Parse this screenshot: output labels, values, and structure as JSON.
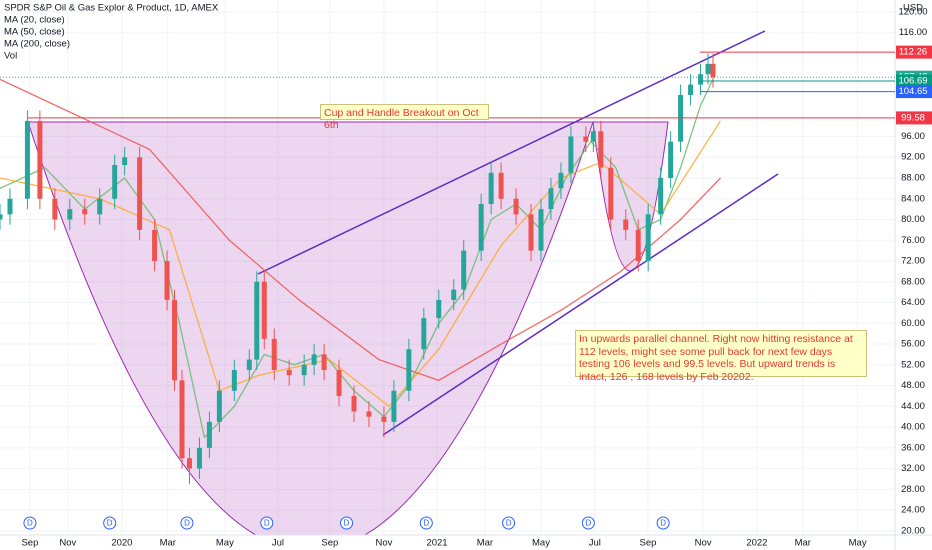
{
  "chart_data": {
    "type": "candlestick",
    "title": "SPDR S&P Oil & Gas Explor & Product, 1D, AMEX",
    "currency": "USD",
    "volume_label": "Vol",
    "xlim": [
      -1.2,
      34.7
    ],
    "ylim": [
      19.2,
      122.3
    ],
    "xticks": [
      {
        "value": 0,
        "label": "Sep"
      },
      {
        "value": 1.52,
        "label": "Nov"
      },
      {
        "value": 3.69,
        "label": "2020"
      },
      {
        "value": 5.53,
        "label": "Mar"
      },
      {
        "value": 7.82,
        "label": "May"
      },
      {
        "value": 9.95,
        "label": "Jul"
      },
      {
        "value": 12.03,
        "label": "Sep"
      },
      {
        "value": 14.2,
        "label": "Nov"
      },
      {
        "value": 16.33,
        "label": "2021"
      },
      {
        "value": 18.25,
        "label": "Mar"
      },
      {
        "value": 20.5,
        "label": "May"
      },
      {
        "value": 22.66,
        "label": "Jul"
      },
      {
        "value": 24.79,
        "label": "Sep"
      },
      {
        "value": 27.0,
        "label": "Nov"
      },
      {
        "value": 29.16,
        "label": "2022"
      },
      {
        "value": 31.0,
        "label": "Mar"
      },
      {
        "value": 33.2,
        "label": "May"
      }
    ],
    "yticks": [
      {
        "value": 20,
        "label": "20.00"
      },
      {
        "value": 24,
        "label": "24.00"
      },
      {
        "value": 28,
        "label": "28.00"
      },
      {
        "value": 32,
        "label": "32.00"
      },
      {
        "value": 36,
        "label": "36.00"
      },
      {
        "value": 40,
        "label": "40.00"
      },
      {
        "value": 44,
        "label": "44.00"
      },
      {
        "value": 48,
        "label": "48.00"
      },
      {
        "value": 52,
        "label": "52.00"
      },
      {
        "value": 56,
        "label": "56.00"
      },
      {
        "value": 60,
        "label": "60.00"
      },
      {
        "value": 64,
        "label": "64.00"
      },
      {
        "value": 68,
        "label": "68.00"
      },
      {
        "value": 72,
        "label": "72.00"
      },
      {
        "value": 76,
        "label": "76.00"
      },
      {
        "value": 80,
        "label": "80.00"
      },
      {
        "value": 84,
        "label": "84.00"
      },
      {
        "value": 88,
        "label": "88.00"
      },
      {
        "value": 92,
        "label": "92.00"
      },
      {
        "value": 96,
        "label": "96.00"
      },
      {
        "value": 116,
        "label": "116.00"
      },
      {
        "value": 120,
        "label": "120.00"
      }
    ],
    "candles": {
      "up_color": "#26a69a",
      "down_color": "#ef5350",
      "x": [
        -1.2,
        -0.8,
        -0.1,
        0.4,
        1.0,
        1.6,
        2.2,
        2.8,
        3.4,
        3.8,
        4.4,
        5.0,
        5.5,
        5.8,
        6.1,
        6.4,
        6.8,
        7.2,
        7.6,
        8.2,
        8.8,
        9.1,
        9.4,
        9.8,
        10.4,
        11.0,
        11.4,
        11.8,
        12.4,
        13.0,
        13.6,
        14.2,
        14.6,
        15.2,
        15.8,
        16.4,
        17.0,
        17.4,
        18.1,
        18.5,
        18.9,
        19.5,
        20.1,
        20.5,
        20.9,
        21.3,
        21.7,
        22.3,
        22.6,
        22.9,
        23.3,
        23.9,
        24.4,
        24.8,
        25.3,
        25.7,
        26.1,
        26.5,
        26.9,
        27.2,
        27.4
      ],
      "open": [
        80,
        81,
        84,
        99,
        84,
        80,
        82,
        81,
        84,
        90.5,
        92,
        78,
        72,
        64.5,
        49,
        34,
        32,
        36,
        41,
        47,
        51,
        53,
        68,
        57,
        51,
        50,
        52,
        54,
        51,
        46,
        43,
        42,
        41,
        47,
        55,
        61,
        64.5,
        66.5,
        74,
        83,
        89,
        84,
        81,
        74,
        82,
        86,
        89,
        96,
        95,
        97,
        90,
        80,
        78,
        72,
        81,
        88,
        95,
        104,
        106,
        108,
        110
      ],
      "high": [
        83,
        86,
        101,
        101,
        86,
        84,
        84,
        86,
        92.5,
        94,
        94,
        80,
        74,
        66.5,
        51,
        36,
        38,
        43,
        49,
        53,
        55,
        70,
        70,
        59,
        53,
        54,
        56,
        56,
        53,
        48,
        45,
        44,
        49,
        57,
        63,
        66.5,
        68.5,
        76,
        85,
        91,
        91,
        86,
        83,
        84,
        88,
        91,
        98,
        98,
        99,
        99,
        92,
        82,
        80,
        83,
        90,
        97,
        106,
        108,
        110,
        112,
        112
      ],
      "low": [
        78,
        79,
        82,
        82,
        78,
        78,
        79,
        79,
        82,
        88.5,
        76,
        70,
        62.5,
        47,
        32,
        29,
        30,
        34,
        39,
        45,
        49,
        51,
        55,
        49,
        48,
        48,
        50,
        49,
        44,
        41,
        40,
        38,
        39,
        45,
        53,
        59,
        62.5,
        64.5,
        72,
        81,
        82,
        79,
        72,
        72,
        80,
        84,
        87,
        93,
        93,
        88,
        78,
        76,
        70,
        70,
        79,
        86,
        93,
        102,
        104,
        106,
        105.42
      ],
      "close": [
        81,
        84,
        99,
        84,
        80,
        82,
        81,
        84,
        90.5,
        92,
        78,
        72,
        64.5,
        49,
        34,
        32,
        36,
        41,
        47,
        51,
        53,
        68,
        57,
        51,
        50,
        52,
        54,
        51,
        46,
        43,
        42,
        41,
        47,
        55,
        61,
        64.5,
        66.5,
        74,
        83,
        89,
        84,
        81,
        74,
        82,
        86,
        89,
        96,
        95,
        97,
        90,
        80,
        78,
        72,
        81,
        88,
        95,
        104,
        106,
        108,
        110,
        107.42
      ]
    },
    "series": [
      {
        "name": "MA (20, close)",
        "color": "#66bb6a",
        "x": [
          -1.2,
          0.6,
          2.2,
          3.8,
          5.0,
          6.0,
          7.0,
          8.2,
          9.4,
          10.6,
          11.8,
          13.0,
          14.2,
          15.2,
          16.4,
          17.4,
          18.5,
          19.5,
          20.5,
          21.5,
          22.5,
          23.5,
          24.4,
          25.3,
          26.1,
          26.9,
          27.4
        ],
        "values": [
          86,
          90,
          82,
          88,
          80,
          60,
          38,
          44,
          54,
          52,
          54,
          47,
          42,
          48,
          60,
          66,
          80,
          83,
          78,
          88,
          95,
          90,
          78,
          80,
          90,
          102,
          107
        ]
      },
      {
        "name": "MA (50, close)",
        "color": "#ffa726",
        "x": [
          -1.2,
          2.8,
          5.6,
          7.6,
          9.2,
          12.0,
          14.4,
          16.4,
          18.9,
          21.3,
          22.9,
          25.3,
          27.7
        ],
        "values": [
          88,
          84,
          78,
          47,
          50,
          53,
          44,
          55,
          75,
          88,
          91,
          81,
          99
        ]
      },
      {
        "name": "MA (200, close)",
        "color": "#ef5350",
        "x": [
          -1.2,
          4.8,
          8.0,
          10.8,
          14.0,
          16.4,
          18.9,
          21.3,
          23.7,
          26.1,
          27.7
        ],
        "values": [
          107,
          93.5,
          76,
          64.5,
          53,
          49,
          56,
          62.5,
          70,
          80,
          88
        ]
      }
    ],
    "levels": [
      112.26,
      107.42,
      106.69,
      104.65,
      99.58
    ],
    "level_colors": [
      "#f23645",
      "#22ab94",
      "#089981",
      "#2962ff",
      "#f23645"
    ],
    "dividends": {
      "label": "D",
      "x": [
        0,
        3.2,
        6.3,
        9.5,
        12.7,
        15.9,
        19.2,
        22.4,
        25.4
      ]
    },
    "annotations": [
      "Cup and Handle Breakout on Oct 6th",
      "In upwards parallel channel. Right now hitting resistance at 112 levels, might see some pull back for next few days testing 106 levels and 99.5 levels. But upward trends is intact, 126 , 168 levels by Feb 20202."
    ]
  }
}
